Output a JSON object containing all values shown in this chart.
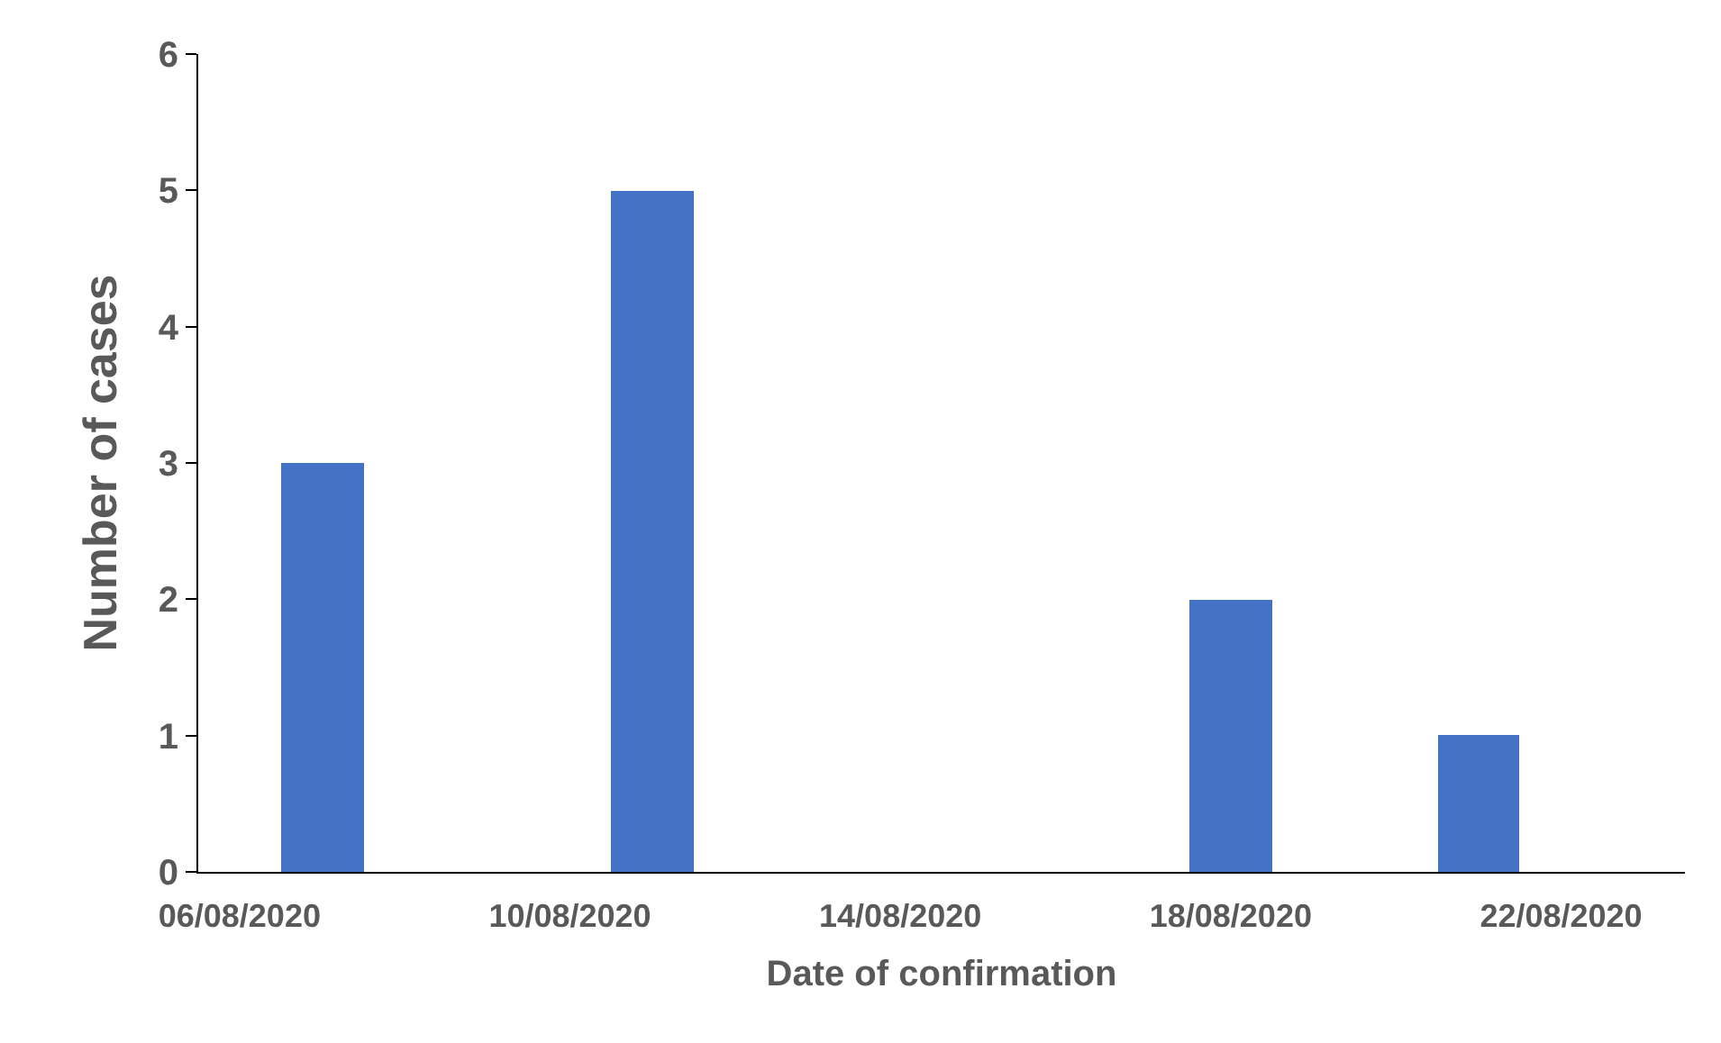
{
  "chart_data": {
    "type": "bar",
    "xlabel": "Date of confirmation",
    "ylabel": "Number of cases",
    "x": [
      "2020-08-07",
      "2020-08-11",
      "2020-08-18",
      "2020-08-21"
    ],
    "values": [
      3,
      5,
      2,
      1
    ],
    "color": "#4472c4",
    "xlim": [
      "2020-08-05T12:00",
      "2020-08-23T12:00"
    ],
    "xticks": [
      {
        "value": "2020-08-06",
        "label": "06/08/2020"
      },
      {
        "value": "2020-08-10",
        "label": "10/08/2020"
      },
      {
        "value": "2020-08-14",
        "label": "14/08/2020"
      },
      {
        "value": "2020-08-18",
        "label": "18/08/2020"
      },
      {
        "value": "2020-08-22",
        "label": "22/08/2020"
      }
    ],
    "ylim": [
      0,
      6
    ],
    "yticks": [
      0,
      1,
      2,
      3,
      4,
      5,
      6
    ],
    "legend": false
  }
}
